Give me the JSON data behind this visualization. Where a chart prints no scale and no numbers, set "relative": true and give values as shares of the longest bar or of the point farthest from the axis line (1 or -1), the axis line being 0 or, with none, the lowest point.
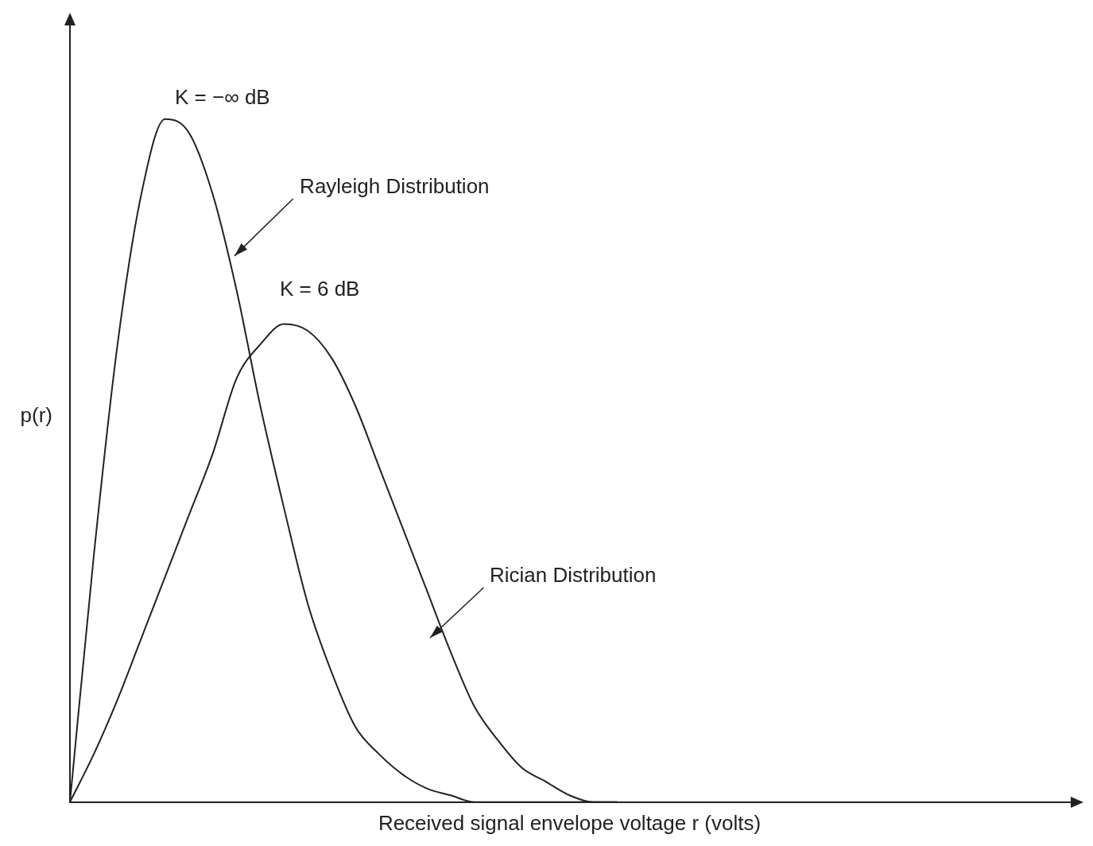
{
  "chart_data": {
    "type": "line",
    "relative": true,
    "xlabel": "Received signal envelope voltage r (volts)",
    "ylabel": "p(r)",
    "categories": [
      null,
      null,
      null,
      null,
      null,
      null,
      null,
      null,
      null,
      null,
      null,
      null,
      null,
      null,
      null,
      null,
      null,
      null,
      null,
      null,
      null,
      null,
      null,
      null
    ],
    "series": [
      {
        "color": "#222222",
        "values": [
          0,
          0.36,
          0.67,
          0.89,
          1,
          0.98,
          0.89,
          0.75,
          0.58,
          0.43,
          0.29,
          0.19,
          0.11,
          0.07,
          0.04,
          0.02,
          0.01,
          0,
          0,
          0,
          0,
          0,
          0,
          0
        ]
      },
      {
        "color": "#222222",
        "values": [
          0,
          0.07,
          0.15,
          0.24,
          0.33,
          0.42,
          0.51,
          0.62,
          0.67,
          0.7,
          0.69,
          0.65,
          0.58,
          0.49,
          0.4,
          0.31,
          0.22,
          0.14,
          0.09,
          0.05,
          0.03,
          0.01,
          0,
          0
        ]
      }
    ],
    "annotations": [
      "K = −∞ dB",
      "Rayleigh Distribution",
      "K = 6 dB",
      "Rician Distribution"
    ]
  }
}
